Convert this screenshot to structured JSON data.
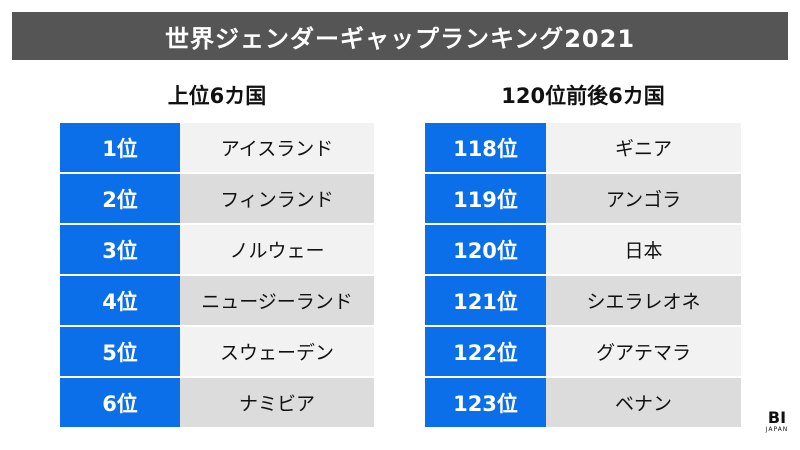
{
  "title": "世界ジェンダーギャップランキング2021",
  "left": {
    "heading": "上位6カ国",
    "rows": [
      {
        "rank": "1位",
        "country": "アイスランド"
      },
      {
        "rank": "2位",
        "country": "フィンランド"
      },
      {
        "rank": "3位",
        "country": "ノルウェー"
      },
      {
        "rank": "4位",
        "country": "ニュージーランド"
      },
      {
        "rank": "5位",
        "country": "スウェーデン"
      },
      {
        "rank": "6位",
        "country": "ナミビア"
      }
    ]
  },
  "right": {
    "heading": "120位前後6カ国",
    "rows": [
      {
        "rank": "118位",
        "country": "ギニア"
      },
      {
        "rank": "119位",
        "country": "アンゴラ"
      },
      {
        "rank": "120位",
        "country": "日本"
      },
      {
        "rank": "121位",
        "country": "シエラレオネ"
      },
      {
        "rank": "122位",
        "country": "グアテマラ"
      },
      {
        "rank": "123位",
        "country": "ベナン"
      }
    ]
  },
  "logo": {
    "main": "BI",
    "sub": "JAPAN"
  },
  "colors": {
    "title_bg": "#555555",
    "rank_bg": "#0a6fe8",
    "row_light": "#f2f2f2",
    "row_dark": "#dcdcdc"
  }
}
